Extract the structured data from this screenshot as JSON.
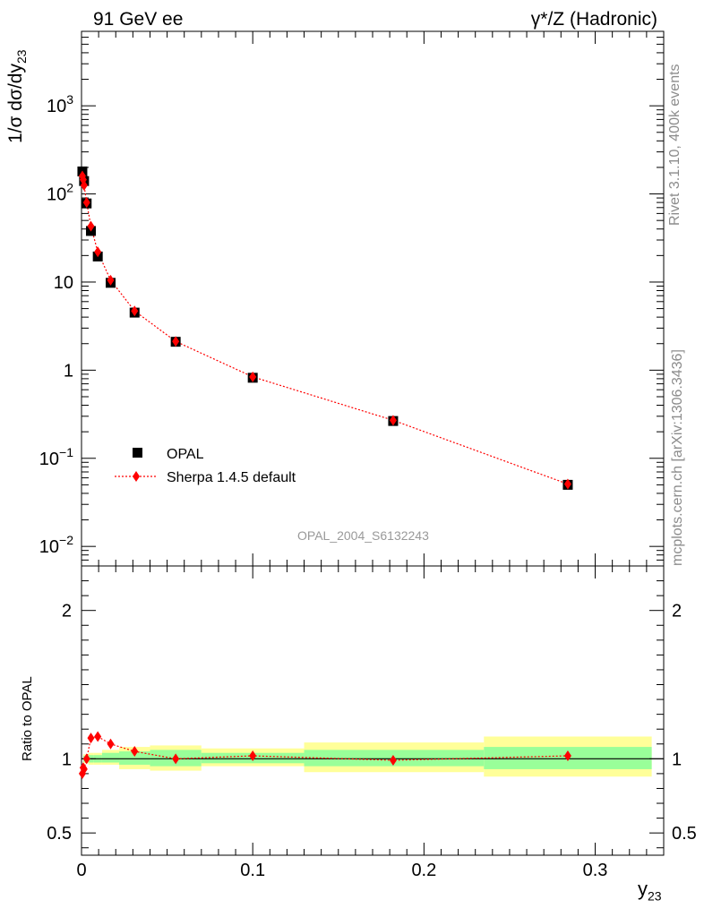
{
  "chart_data": {
    "type": "scatter",
    "title_left": "91 GeV ee",
    "title_right": "γ*/Z (Hadronic)",
    "watermark": "OPAL_2004_S6132243",
    "side_text_top": "Rivet 3.1.10,  400k events",
    "side_text_bottom": "mcplots.cern.ch [arXiv:1306.3436]",
    "xlabel": "y",
    "xlabel_sub": "23",
    "ylabel_main": "1/σ dσ/dy",
    "ylabel_main_sub": "23",
    "ylabel_ratio": "Ratio to OPAL",
    "xlim": [
      0,
      0.34
    ],
    "ylim_main": [
      0.006,
      7000
    ],
    "ylim_ratio": [
      0.35,
      2.3
    ],
    "x_ticks": [
      "0",
      "0.1",
      "0.2",
      "0.3"
    ],
    "y_ticks_main": [
      {
        "mantissa": "10",
        "exp": "−2"
      },
      {
        "mantissa": "10",
        "exp": "−1"
      },
      {
        "mantissa": "1",
        "exp": ""
      },
      {
        "mantissa": "10",
        "exp": ""
      },
      {
        "mantissa": "10",
        "exp": "2"
      },
      {
        "mantissa": "10",
        "exp": "3"
      }
    ],
    "y_ticks_ratio": [
      "0.5",
      "1",
      "2"
    ],
    "legend": [
      {
        "label": "OPAL",
        "marker": "square",
        "color": "#000000"
      },
      {
        "label": "Sherpa 1.4.5 default",
        "marker": "diamond",
        "color": "#ff0000"
      }
    ],
    "series": [
      {
        "name": "OPAL",
        "x": [
          0.0005,
          0.0015,
          0.003,
          0.0055,
          0.0095,
          0.017,
          0.031,
          0.055,
          0.1,
          0.182,
          0.284
        ],
        "y": [
          180,
          140,
          78,
          38,
          19.5,
          9.8,
          4.5,
          2.1,
          0.82,
          0.265,
          0.05
        ]
      },
      {
        "name": "Sherpa 1.4.5 default",
        "x": [
          0.0005,
          0.001,
          0.0015,
          0.003,
          0.0055,
          0.0095,
          0.017,
          0.031,
          0.055,
          0.1,
          0.182,
          0.284
        ],
        "y": [
          160,
          145,
          125,
          80,
          43,
          22,
          10.5,
          4.7,
          2.12,
          0.84,
          0.27,
          0.051
        ]
      }
    ],
    "ratio": {
      "x": [
        0.0005,
        0.001,
        0.0015,
        0.003,
        0.0055,
        0.0095,
        0.017,
        0.031,
        0.055,
        0.1,
        0.182,
        0.284
      ],
      "y": [
        0.9,
        0.94,
        0.93,
        1.0,
        1.14,
        1.15,
        1.1,
        1.05,
        1.0,
        1.02,
        0.99,
        1.02
      ]
    },
    "uncertainty_bands": [
      {
        "x_low": 0.001,
        "x_high": 0.002,
        "yellow": [
          0.97,
          1.03
        ],
        "green": [
          0.98,
          1.02
        ]
      },
      {
        "x_low": 0.002,
        "x_high": 0.004,
        "yellow": [
          0.97,
          1.03
        ],
        "green": [
          0.98,
          1.02
        ]
      },
      {
        "x_low": 0.004,
        "x_high": 0.007,
        "yellow": [
          0.96,
          1.04
        ],
        "green": [
          0.975,
          1.025
        ]
      },
      {
        "x_low": 0.007,
        "x_high": 0.012,
        "yellow": [
          0.96,
          1.04
        ],
        "green": [
          0.975,
          1.025
        ]
      },
      {
        "x_low": 0.012,
        "x_high": 0.022,
        "yellow": [
          0.96,
          1.06
        ],
        "green": [
          0.975,
          1.04
        ]
      },
      {
        "x_low": 0.022,
        "x_high": 0.04,
        "yellow": [
          0.93,
          1.08
        ],
        "green": [
          0.96,
          1.05
        ]
      },
      {
        "x_low": 0.04,
        "x_high": 0.07,
        "yellow": [
          0.92,
          1.09
        ],
        "green": [
          0.95,
          1.06
        ]
      },
      {
        "x_low": 0.07,
        "x_high": 0.13,
        "yellow": [
          0.95,
          1.07
        ],
        "green": [
          0.97,
          1.04
        ]
      },
      {
        "x_low": 0.13,
        "x_high": 0.235,
        "yellow": [
          0.91,
          1.11
        ],
        "green": [
          0.95,
          1.06
        ]
      },
      {
        "x_low": 0.235,
        "x_high": 0.333,
        "yellow": [
          0.88,
          1.15
        ],
        "green": [
          0.93,
          1.08
        ]
      }
    ]
  }
}
